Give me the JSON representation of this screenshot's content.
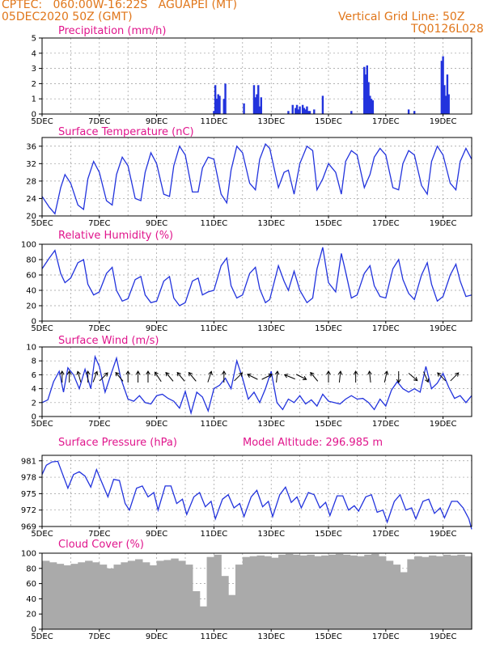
{
  "header": {
    "line1": "CPTEC:   060:00W-16:22S   AGUAPEI (MT)",
    "line2": "05DEC2020 50Z (GMT)",
    "grid_note": "Vertical Grid Line: 50Z",
    "code": "TQ0126L028"
  },
  "colors": {
    "header": "#e0761a",
    "title": "#e0158c",
    "series": "#2233dd",
    "cloud": "#aaaaaa",
    "arrow": "#000000"
  },
  "x_axis": {
    "ticks": [
      "5DEC",
      "7DEC",
      "9DEC",
      "11DEC",
      "13DEC",
      "15DEC",
      "17DEC",
      "19DEC"
    ],
    "tick_days": [
      5,
      7,
      9,
      11,
      13,
      15,
      17,
      19
    ],
    "range": [
      5,
      20
    ],
    "grid": "dotted daily vertical lines"
  },
  "chart_data": [
    {
      "type": "bar",
      "title": "Precipitation (mm/h)",
      "ylim": [
        0,
        5
      ],
      "yticks": [
        "0",
        "1",
        "2",
        "3",
        "4",
        "5"
      ],
      "x": [
        11.0,
        11.05,
        11.1,
        11.15,
        11.2,
        11.35,
        11.4,
        12.05,
        12.4,
        12.45,
        12.5,
        12.55,
        12.6,
        12.65,
        13.6,
        13.75,
        13.85,
        13.9,
        13.95,
        14.0,
        14.1,
        14.15,
        14.2,
        14.25,
        14.3,
        14.35,
        14.5,
        14.8,
        15.8,
        16.25,
        16.3,
        16.35,
        16.4,
        16.45,
        16.5,
        16.55,
        17.8,
        18.0,
        18.95,
        19.0,
        19.05,
        19.1,
        19.15,
        19.2
      ],
      "values": [
        0.2,
        1.9,
        1.0,
        1.3,
        1.2,
        1.0,
        2.0,
        0.7,
        1.9,
        1.1,
        1.3,
        1.9,
        0.5,
        1.1,
        0.2,
        0.6,
        0.4,
        0.6,
        0.3,
        0.5,
        0.6,
        0.4,
        0.3,
        0.5,
        0.2,
        0.2,
        0.3,
        1.2,
        0.2,
        3.1,
        2.6,
        3.2,
        2.1,
        1.2,
        1.0,
        0.9,
        0.3,
        0.2,
        3.5,
        3.8,
        1.9,
        1.2,
        2.6,
        1.3
      ]
    },
    {
      "type": "line",
      "title": "Surface Temperature (nC)",
      "ylim": [
        20,
        38
      ],
      "yticks": [
        "20",
        "24",
        "28",
        "32",
        "36"
      ],
      "x": [
        5,
        5.25,
        5.45,
        5.65,
        5.8,
        6.0,
        6.25,
        6.45,
        6.6,
        6.8,
        7.0,
        7.25,
        7.45,
        7.6,
        7.8,
        8.0,
        8.25,
        8.45,
        8.6,
        8.8,
        9.0,
        9.25,
        9.45,
        9.6,
        9.8,
        10.0,
        10.25,
        10.45,
        10.6,
        10.8,
        11.0,
        11.25,
        11.45,
        11.6,
        11.8,
        12.0,
        12.25,
        12.45,
        12.6,
        12.8,
        12.95,
        13.25,
        13.45,
        13.6,
        13.8,
        14.0,
        14.25,
        14.45,
        14.6,
        14.8,
        15.0,
        15.25,
        15.45,
        15.6,
        15.8,
        16.0,
        16.25,
        16.45,
        16.6,
        16.8,
        17.0,
        17.25,
        17.45,
        17.6,
        17.8,
        18.0,
        18.25,
        18.45,
        18.6,
        18.8,
        19.0,
        19.25,
        19.45,
        19.6,
        19.8,
        20.0
      ],
      "values": [
        24.5,
        22.0,
        20.5,
        26.5,
        29.5,
        27.5,
        22.5,
        21.5,
        28.5,
        32.5,
        30.0,
        23.5,
        22.5,
        29.5,
        33.5,
        31.5,
        24.0,
        23.5,
        30.0,
        34.5,
        32.0,
        25.0,
        24.5,
        31.5,
        36.0,
        34.0,
        25.5,
        25.5,
        31.0,
        33.5,
        33.0,
        25.0,
        23.0,
        30.5,
        36.0,
        34.5,
        27.5,
        26.0,
        33.0,
        36.5,
        35.5,
        26.5,
        30.0,
        30.5,
        25.0,
        32.0,
        36.0,
        35.0,
        26.0,
        28.5,
        32.0,
        30.0,
        25.0,
        32.5,
        35.0,
        34.0,
        26.5,
        29.5,
        33.5,
        35.5,
        34.0,
        26.5,
        26.0,
        32.0,
        35.0,
        34.0,
        27.0,
        25.0,
        32.5,
        36.0,
        34.0,
        27.5,
        26.0,
        32.5,
        35.5,
        33.0
      ]
    },
    {
      "type": "line",
      "title": "Relative Humidity (%)",
      "ylim": [
        0,
        100
      ],
      "yticks": [
        "0",
        "20",
        "40",
        "60",
        "80",
        "100"
      ],
      "x": [
        5,
        5.25,
        5.45,
        5.65,
        5.8,
        6.0,
        6.25,
        6.45,
        6.6,
        6.8,
        7.0,
        7.25,
        7.45,
        7.6,
        7.8,
        8.0,
        8.25,
        8.45,
        8.6,
        8.8,
        9.0,
        9.25,
        9.45,
        9.6,
        9.8,
        10.0,
        10.25,
        10.45,
        10.6,
        10.8,
        11.0,
        11.25,
        11.45,
        11.6,
        11.8,
        12.0,
        12.25,
        12.45,
        12.6,
        12.8,
        12.95,
        13.25,
        13.45,
        13.6,
        13.8,
        14.0,
        14.25,
        14.45,
        14.6,
        14.8,
        15.0,
        15.25,
        15.45,
        15.6,
        15.8,
        16.0,
        16.25,
        16.45,
        16.6,
        16.8,
        17.0,
        17.25,
        17.45,
        17.6,
        17.8,
        18.0,
        18.25,
        18.45,
        18.6,
        18.8,
        19.0,
        19.25,
        19.45,
        19.6,
        19.8,
        20.0
      ],
      "values": [
        68,
        82,
        92,
        62,
        50,
        56,
        76,
        80,
        48,
        34,
        38,
        62,
        70,
        40,
        26,
        29,
        54,
        58,
        34,
        24,
        26,
        52,
        58,
        30,
        20,
        24,
        52,
        56,
        34,
        38,
        40,
        72,
        82,
        46,
        30,
        34,
        62,
        70,
        42,
        24,
        28,
        72,
        52,
        40,
        65,
        40,
        24,
        30,
        68,
        96,
        50,
        38,
        88,
        64,
        30,
        34,
        62,
        72,
        46,
        32,
        30,
        68,
        80,
        54,
        36,
        28,
        60,
        76,
        48,
        26,
        32,
        60,
        74,
        52,
        32,
        34
      ]
    },
    {
      "type": "line",
      "title": "Surface Wind (m/s)",
      "ylim": [
        0,
        10
      ],
      "yticks": [
        "0",
        "2",
        "4",
        "6",
        "8",
        "10"
      ],
      "x": [
        5,
        5.2,
        5.4,
        5.6,
        5.75,
        5.9,
        6.1,
        6.3,
        6.5,
        6.7,
        6.85,
        7.0,
        7.2,
        7.4,
        7.6,
        7.75,
        8.0,
        8.2,
        8.4,
        8.6,
        8.8,
        9.0,
        9.2,
        9.4,
        9.6,
        9.8,
        10.0,
        10.2,
        10.4,
        10.6,
        10.8,
        11.0,
        11.2,
        11.4,
        11.6,
        11.8,
        12.0,
        12.2,
        12.4,
        12.6,
        12.8,
        13.0,
        13.2,
        13.4,
        13.6,
        13.8,
        14.0,
        14.2,
        14.4,
        14.6,
        14.8,
        15.0,
        15.2,
        15.4,
        15.6,
        15.8,
        16.0,
        16.2,
        16.4,
        16.6,
        16.8,
        17.0,
        17.2,
        17.4,
        17.6,
        17.8,
        18.0,
        18.2,
        18.4,
        18.6,
        18.8,
        19.0,
        19.2,
        19.4,
        19.6,
        19.8,
        20.0
      ],
      "values": [
        2.0,
        2.4,
        5.0,
        6.5,
        3.5,
        7.0,
        6.0,
        4.0,
        6.8,
        4.0,
        8.6,
        7.2,
        3.5,
        6.0,
        8.4,
        5.5,
        2.5,
        2.2,
        3.0,
        2.0,
        1.8,
        3.0,
        3.2,
        2.6,
        2.2,
        1.2,
        3.6,
        0.5,
        3.5,
        2.8,
        0.8,
        4.0,
        4.5,
        5.5,
        4.0,
        8.0,
        5.5,
        2.5,
        3.5,
        2.0,
        4.0,
        6.5,
        2.0,
        1.0,
        2.5,
        2.0,
        3.0,
        1.8,
        2.4,
        1.5,
        3.2,
        2.2,
        2.0,
        1.8,
        2.5,
        3.0,
        2.5,
        2.6,
        2.0,
        1.0,
        2.5,
        1.5,
        3.8,
        5.0,
        4.0,
        3.5,
        4.0,
        3.5,
        7.2,
        4.0,
        4.8,
        6.2,
        4.2,
        2.6,
        3.0,
        2.0,
        3.0
      ]
    },
    {
      "type": "line",
      "title": "Surface Pressure (hPa)",
      "annotation": "Model Altitude: 296.985 m",
      "ylim": [
        969,
        982
      ],
      "yticks": [
        "969",
        "972",
        "975",
        "978",
        "981"
      ],
      "x": [
        5,
        5.15,
        5.35,
        5.55,
        5.7,
        5.9,
        6.1,
        6.3,
        6.5,
        6.7,
        6.9,
        7.05,
        7.3,
        7.5,
        7.7,
        7.9,
        8.05,
        8.3,
        8.5,
        8.7,
        8.9,
        9.05,
        9.3,
        9.5,
        9.7,
        9.9,
        10.05,
        10.3,
        10.5,
        10.7,
        10.9,
        11.05,
        11.3,
        11.5,
        11.7,
        11.9,
        12.05,
        12.3,
        12.5,
        12.7,
        12.9,
        13.05,
        13.3,
        13.5,
        13.7,
        13.9,
        14.05,
        14.3,
        14.5,
        14.7,
        14.9,
        15.05,
        15.3,
        15.5,
        15.7,
        15.9,
        16.05,
        16.3,
        16.5,
        16.7,
        16.9,
        17.05,
        17.3,
        17.5,
        17.7,
        17.9,
        18.05,
        18.3,
        18.5,
        18.7,
        18.9,
        19.05,
        19.3,
        19.5,
        19.7,
        19.9,
        20.0
      ],
      "values": [
        978.5,
        980.2,
        980.8,
        980.9,
        978.8,
        976.0,
        978.5,
        979.0,
        978.2,
        976.2,
        979.4,
        977.5,
        974.4,
        977.6,
        977.4,
        973.2,
        972.0,
        976.0,
        976.4,
        974.4,
        975.2,
        972.0,
        976.4,
        976.4,
        973.2,
        974.0,
        971.2,
        974.4,
        975.2,
        972.6,
        973.6,
        970.4,
        974.0,
        974.8,
        972.4,
        973.2,
        970.8,
        974.4,
        975.6,
        972.6,
        973.6,
        970.8,
        974.8,
        976.2,
        973.4,
        974.4,
        972.4,
        975.2,
        974.8,
        972.4,
        973.4,
        971.0,
        974.6,
        974.6,
        972.0,
        972.8,
        971.8,
        974.4,
        974.8,
        971.6,
        972.0,
        969.8,
        973.6,
        974.8,
        972.0,
        972.4,
        970.4,
        973.6,
        974.0,
        971.4,
        972.4,
        970.6,
        973.6,
        973.6,
        972.4,
        970.4,
        968.5
      ]
    },
    {
      "type": "bar",
      "title": "Cloud Cover (%)",
      "ylim": [
        0,
        100
      ],
      "yticks": [
        "0",
        "20",
        "40",
        "60",
        "80",
        "100"
      ],
      "x": [
        5,
        5.25,
        5.5,
        5.75,
        6,
        6.25,
        6.5,
        6.75,
        7,
        7.25,
        7.5,
        7.75,
        8,
        8.25,
        8.5,
        8.75,
        9,
        9.25,
        9.5,
        9.75,
        10,
        10.25,
        10.5,
        10.75,
        11,
        11.25,
        11.5,
        11.75,
        12,
        12.25,
        12.5,
        12.75,
        13,
        13.25,
        13.5,
        13.75,
        14,
        14.25,
        14.5,
        14.75,
        15,
        15.25,
        15.5,
        15.75,
        16,
        16.25,
        16.5,
        16.75,
        17,
        17.25,
        17.5,
        17.75,
        18,
        18.25,
        18.5,
        18.75,
        19,
        19.25,
        19.5,
        19.75
      ],
      "values": [
        90,
        88,
        86,
        84,
        86,
        88,
        90,
        88,
        85,
        80,
        85,
        88,
        90,
        92,
        88,
        84,
        90,
        91,
        93,
        90,
        85,
        50,
        30,
        95,
        98,
        70,
        45,
        85,
        95,
        96,
        97,
        96,
        94,
        98,
        99,
        98,
        97,
        98,
        96,
        97,
        98,
        99,
        98,
        97,
        96,
        98,
        99,
        96,
        90,
        85,
        75,
        92,
        96,
        95,
        97,
        96,
        98,
        97,
        98,
        96
      ],
      "type_note": ""
    }
  ],
  "wind_arrows": {
    "x": [
      5.7,
      5.95,
      6.3,
      6.6,
      6.85,
      7.15,
      7.7,
      8.0,
      8.35,
      8.7,
      9.05,
      9.45,
      9.85,
      10.25,
      10.85,
      11.35,
      11.85,
      12.35,
      12.85,
      13.2,
      13.65,
      14.05,
      14.5,
      15.0,
      15.4,
      15.95,
      16.45,
      17.0,
      17.45,
      17.95,
      18.4,
      18.95,
      19.4
    ],
    "dx": [
      0.0,
      0.0,
      -0.2,
      0.0,
      0.3,
      0.5,
      -0.5,
      0.0,
      0.0,
      0.0,
      -0.4,
      -0.5,
      -0.5,
      -0.5,
      0.3,
      0.0,
      0.6,
      -0.6,
      0.6,
      0.1,
      -0.5,
      0.8,
      -0.5,
      0.0,
      0.1,
      0.0,
      -0.1,
      0.2,
      0.0,
      0.7,
      0.4,
      -0.6,
      0.5
    ],
    "dy": [
      -1.0,
      -1.0,
      -0.7,
      -1.0,
      -0.8,
      -0.5,
      -0.6,
      -1.0,
      -1.0,
      -1.0,
      -0.6,
      -0.6,
      -0.6,
      -0.6,
      -0.9,
      -1.0,
      -0.6,
      -0.3,
      -0.3,
      -1.0,
      -0.2,
      0.4,
      -0.6,
      -1.0,
      -0.9,
      -1.0,
      -0.9,
      -0.9,
      1.0,
      0.6,
      0.9,
      -0.6,
      -0.5
    ]
  }
}
